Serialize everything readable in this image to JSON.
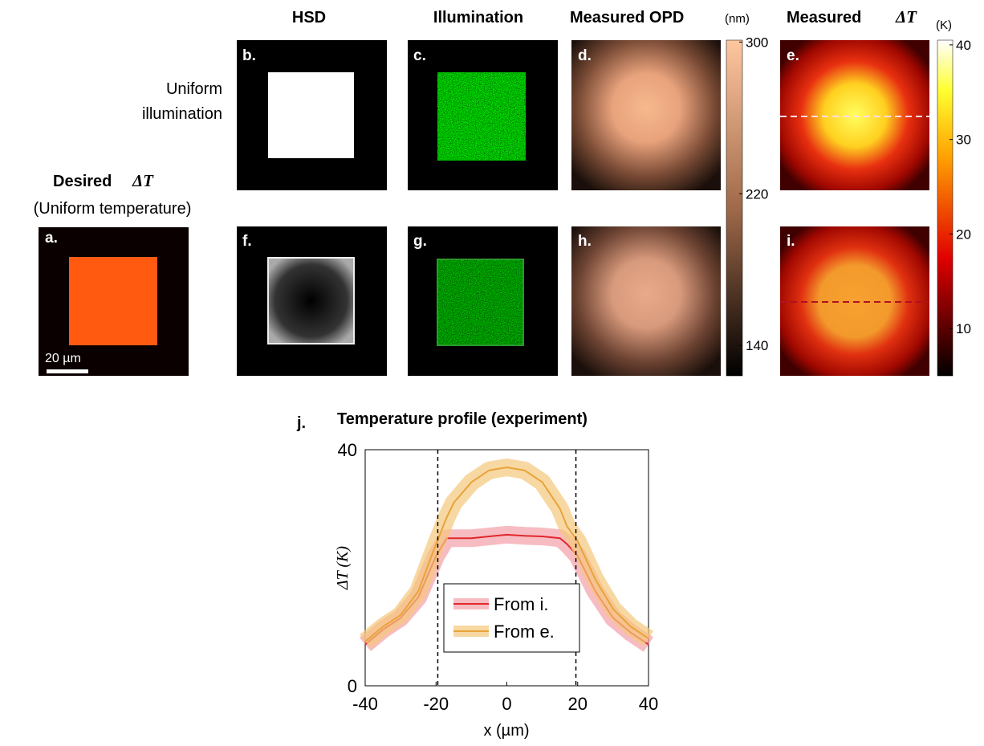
{
  "headers": {
    "hsd": "HSD",
    "illumination": "Illumination",
    "opd": "Measured OPD",
    "opd_unit": "(nm)",
    "dt": "Measured",
    "dt_symbol": "ΔT",
    "dt_unit": "(K)"
  },
  "row_label": [
    "Uniform",
    "illumination"
  ],
  "desired": {
    "title": "Desired",
    "symbol": "ΔT",
    "subtitle": "(Uniform temperature)",
    "scale_bar": "20 µm"
  },
  "panels": [
    "a.",
    "b.",
    "c.",
    "d.",
    "e.",
    "f.",
    "g.",
    "h.",
    "i."
  ],
  "opd_colorbar": {
    "lim": [
      124,
      301
    ],
    "ticks": [
      140,
      220,
      300
    ]
  },
  "dt_colorbar": {
    "lim": [
      5,
      40.5
    ],
    "ticks": [
      10,
      20,
      30,
      40
    ]
  },
  "chart_data": {
    "type": "line",
    "panel": "j.",
    "title": "Temperature profile (experiment)",
    "xlabel": "x (µm)",
    "ylabel": "ΔT (K)",
    "x": [
      -40,
      -35,
      -30,
      -25,
      -20,
      -17,
      -15,
      -10,
      -5,
      0,
      5,
      10,
      15,
      17,
      20,
      25,
      30,
      35,
      40
    ],
    "series": [
      {
        "name": "From i.",
        "color": "#e0282c",
        "band_color": "#f4a0a8",
        "error": 1.5,
        "values": [
          7,
          9.5,
          11.5,
          15,
          22,
          25,
          25,
          25,
          25.3,
          25.6,
          25.4,
          25.3,
          25,
          24,
          22,
          16,
          11.5,
          9,
          7
        ]
      },
      {
        "name": "From e.",
        "color": "#e8a33a",
        "band_color": "#f5c77a",
        "error": 1.5,
        "values": [
          7.5,
          10,
          12,
          16,
          24,
          28.5,
          31,
          34.5,
          36.5,
          37,
          36.5,
          34.5,
          30,
          27,
          24.5,
          18,
          13,
          10,
          8
        ]
      }
    ],
    "vlines": [
      -19.5,
      19.5
    ],
    "xlim": [
      -40,
      40
    ],
    "ylim": [
      0,
      40
    ],
    "xticks": [
      -40,
      -20,
      0,
      20,
      40
    ],
    "yticks": [
      0,
      40
    ]
  }
}
